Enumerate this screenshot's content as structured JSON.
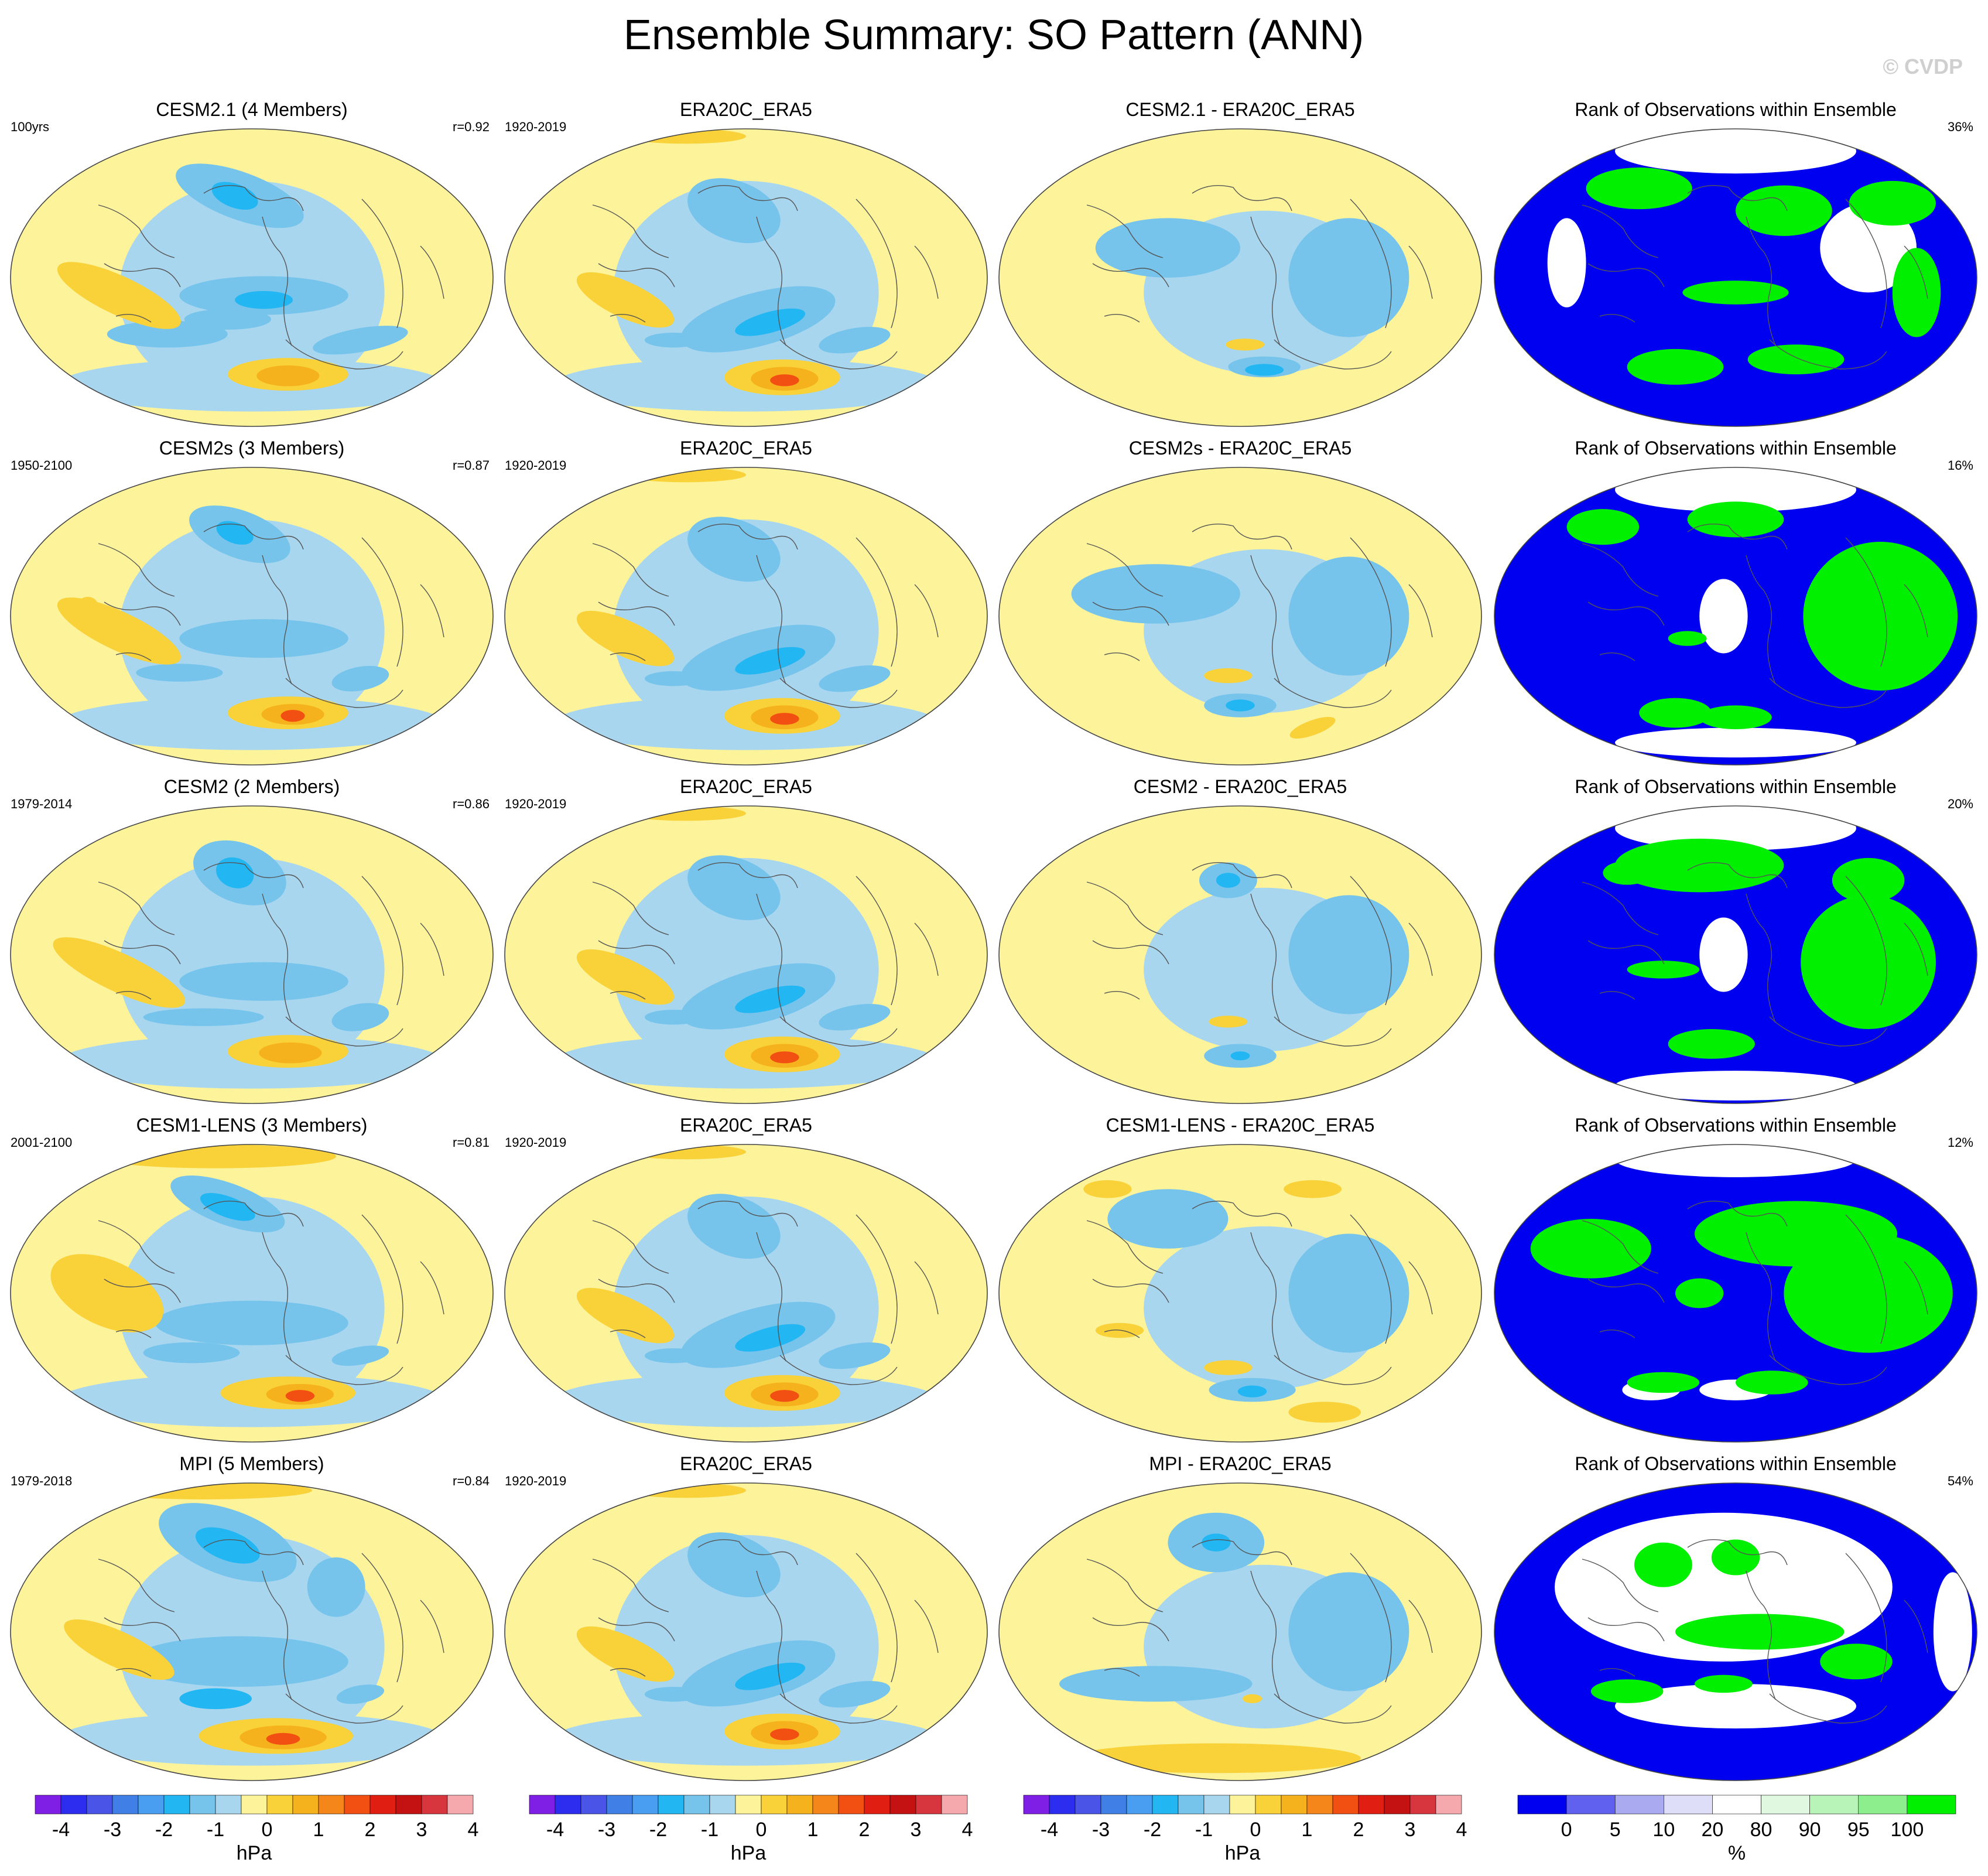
{
  "figure": {
    "title": "Ensemble Summary: SO Pattern (ANN)",
    "watermark": "© CVDP"
  },
  "colors": {
    "model_scale": [
      "#7f1fe6",
      "#2d2df0",
      "#4a55e8",
      "#3f7fe6",
      "#4a9ef2",
      "#22b6f2",
      "#76c4ec",
      "#a9d6ef",
      "#fcf39a",
      "#f9d138",
      "#f6b21d",
      "#f4861a",
      "#f24f12",
      "#e01f12",
      "#c41111",
      "#d8363e",
      "#f5a9ad"
    ],
    "rank_scale": [
      "#0000f0",
      "#6161f0",
      "#aaaaf0",
      "#dedef8",
      "#ffffff",
      "#dff8df",
      "#b8f3b8",
      "#8cee8c",
      "#00f000"
    ],
    "coast": "#555555",
    "border": "#444444"
  },
  "chart_data": {
    "type": "map_panel_grid",
    "rows": [
      {
        "model": {
          "title": "CESM2.1 (4 Members)",
          "years": "100yrs",
          "r": "r=0.92"
        },
        "obs": {
          "title": "ERA20C_ERA5",
          "years": "1920-2019"
        },
        "diff": {
          "title": "CESM2.1 - ERA20C_ERA5"
        },
        "rank": {
          "title": "Rank of Observations within Ensemble",
          "pct": "36%"
        }
      },
      {
        "model": {
          "title": "CESM2s (3 Members)",
          "years": "1950-2100",
          "r": "r=0.87"
        },
        "obs": {
          "title": "ERA20C_ERA5",
          "years": "1920-2019"
        },
        "diff": {
          "title": "CESM2s - ERA20C_ERA5"
        },
        "rank": {
          "title": "Rank of Observations within Ensemble",
          "pct": "16%"
        }
      },
      {
        "model": {
          "title": "CESM2 (2 Members)",
          "years": "1979-2014",
          "r": "r=0.86"
        },
        "obs": {
          "title": "ERA20C_ERA5",
          "years": "1920-2019"
        },
        "diff": {
          "title": "CESM2 - ERA20C_ERA5"
        },
        "rank": {
          "title": "Rank of Observations within Ensemble",
          "pct": "20%"
        }
      },
      {
        "model": {
          "title": "CESM1-LENS (3 Members)",
          "years": "2001-2100",
          "r": "r=0.81"
        },
        "obs": {
          "title": "ERA20C_ERA5",
          "years": "1920-2019"
        },
        "diff": {
          "title": "CESM1-LENS - ERA20C_ERA5"
        },
        "rank": {
          "title": "Rank of Observations within Ensemble",
          "pct": "12%"
        }
      },
      {
        "model": {
          "title": "MPI (5 Members)",
          "years": "1979-2018",
          "r": "r=0.84"
        },
        "obs": {
          "title": "ERA20C_ERA5",
          "years": "1920-2019"
        },
        "diff": {
          "title": "MPI - ERA20C_ERA5"
        },
        "rank": {
          "title": "Rank of Observations within Ensemble",
          "pct": "54%"
        }
      }
    ],
    "colorbars": [
      {
        "unit": "hPa",
        "ticks": [
          "-4",
          "-3",
          "-2",
          "-1",
          "0",
          "1",
          "2",
          "3",
          "4"
        ]
      },
      {
        "unit": "hPa",
        "ticks": [
          "-4",
          "-3",
          "-2",
          "-1",
          "0",
          "1",
          "2",
          "3",
          "4"
        ]
      },
      {
        "unit": "hPa",
        "ticks": [
          "-4",
          "-3",
          "-2",
          "-1",
          "0",
          "1",
          "2",
          "3",
          "4"
        ]
      },
      {
        "unit": "%",
        "ticks": [
          "0",
          "5",
          "10",
          "20",
          "80",
          "90",
          "95",
          "100"
        ]
      }
    ]
  }
}
